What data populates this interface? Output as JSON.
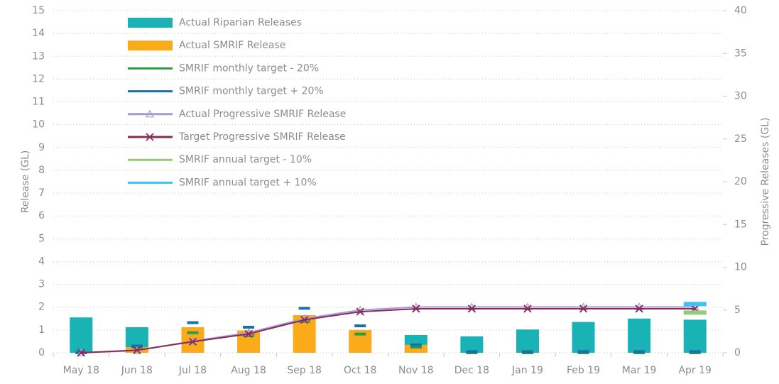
{
  "chart_data": {
    "type": "bar",
    "y_label": "Release (GL)",
    "y2_label": "Progressive Releases (GL)",
    "categories": [
      "May 18",
      "Jun 18",
      "Jul 18",
      "Aug 18",
      "Sep 18",
      "Oct 18",
      "Nov 18",
      "Dec 18",
      "Jan 19",
      "Feb 19",
      "Mar 19",
      "Apr 19"
    ],
    "ylim": [
      0,
      15
    ],
    "yticks": [
      0,
      1,
      2,
      3,
      4,
      5,
      6,
      7,
      8,
      9,
      10,
      11,
      12,
      13,
      14,
      15
    ],
    "y2lim": [
      0,
      40
    ],
    "y2ticks": [
      0,
      5,
      10,
      15,
      20,
      25,
      30,
      35,
      40
    ],
    "grid": true,
    "legend": "upper left",
    "series": [
      {
        "name": "Actual Riparian Releases",
        "type": "bar",
        "color": "#19b3b6",
        "values": [
          1.55,
          1.12,
          0,
          0,
          0,
          0,
          0.78,
          0.72,
          1.02,
          1.35,
          1.5,
          1.45
        ]
      },
      {
        "name": "Actual SMRIF Release",
        "type": "bar",
        "color": "#fbab1a",
        "values": [
          0,
          0.25,
          1.12,
          0.98,
          1.65,
          1.0,
          0.35,
          0,
          0,
          0,
          0,
          0
        ]
      },
      {
        "name": "SMRIF monthly target - 20%",
        "type": "dash",
        "color": "#2e9a45",
        "values": [
          0,
          0.25,
          0.88,
          0.75,
          1.38,
          0.82,
          0.25,
          0,
          0,
          0,
          0,
          0
        ]
      },
      {
        "name": "SMRIF monthly target + 20%",
        "type": "dash",
        "color": "#1a70ab",
        "values": [
          0,
          0.3,
          1.32,
          1.12,
          1.95,
          1.18,
          0.35,
          0.05,
          0.05,
          0.05,
          0.05,
          0.05
        ]
      },
      {
        "name": "Actual Progressive SMRIF Release",
        "type": "line",
        "marker": "triangle",
        "axis": "y2",
        "color": "#a19cd6",
        "values": [
          0,
          0.25,
          1.37,
          2.35,
          4.0,
          5.0,
          5.35,
          5.35,
          5.35,
          5.35,
          5.35,
          5.35
        ]
      },
      {
        "name": "Target Progressive SMRIF Release",
        "type": "line",
        "marker": "x",
        "axis": "y2",
        "color": "#8a2a55",
        "values": [
          0,
          0.3,
          1.3,
          2.2,
          3.85,
          4.8,
          5.15,
          5.15,
          5.15,
          5.15,
          5.15,
          5.15
        ]
      },
      {
        "name": "SMRIF annual target - 10%",
        "type": "annual",
        "axis": "y2",
        "color": "#93cc77",
        "values": [
          null,
          null,
          null,
          null,
          null,
          null,
          null,
          null,
          null,
          null,
          null,
          4.7
        ]
      },
      {
        "name": "SMRIF annual target + 10%",
        "type": "annual",
        "axis": "y2",
        "color": "#3cc3f0",
        "values": [
          null,
          null,
          null,
          null,
          null,
          null,
          null,
          null,
          null,
          null,
          null,
          5.7
        ]
      }
    ]
  }
}
